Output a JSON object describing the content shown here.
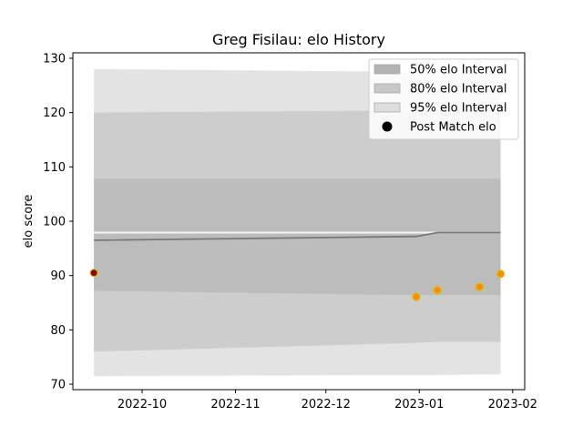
{
  "chart_data": {
    "type": "line",
    "title": "Greg Fisilau: elo History",
    "xlabel": "",
    "ylabel": "elo score",
    "ylim": [
      69,
      131
    ],
    "xlim": [
      "2022-09-08",
      "2023-02-05"
    ],
    "grid": false,
    "legend_position": "top-right",
    "x_ticks": [
      "2022-10-01",
      "2022-11-01",
      "2022-12-01",
      "2023-01-01",
      "2023-02-01"
    ],
    "x_tick_labels": [
      "2022-10",
      "2022-11",
      "2022-12",
      "2023-01",
      "2023-02"
    ],
    "y_ticks": [
      70,
      80,
      90,
      100,
      110,
      120,
      130
    ],
    "y_tick_labels": [
      "70",
      "80",
      "90",
      "100",
      "110",
      "120",
      "130"
    ],
    "band_dates": [
      "2022-09-15",
      "2022-12-31",
      "2023-01-07",
      "2023-01-21",
      "2023-01-28"
    ],
    "intervals": [
      {
        "name": "95% elo Interval",
        "color": "#e3e3e3",
        "upper": [
          128.0,
          127.5,
          127.4,
          127.3,
          127.3
        ],
        "lower": [
          71.5,
          71.7,
          71.7,
          71.8,
          71.8
        ]
      },
      {
        "name": "80% elo Interval",
        "color": "#cdcdcd",
        "upper": [
          120.0,
          120.4,
          120.5,
          120.5,
          120.5
        ],
        "lower": [
          76.0,
          77.6,
          77.8,
          77.8,
          77.8
        ]
      },
      {
        "name": "50% elo Interval",
        "color": "#bcbcbc",
        "upper": [
          107.8,
          107.8,
          107.8,
          107.8,
          107.8
        ],
        "lower": [
          87.2,
          86.4,
          86.4,
          86.4,
          86.4
        ]
      }
    ],
    "mean_line": {
      "dates": [
        "2022-09-15",
        "2022-12-31",
        "2023-01-07",
        "2023-01-21",
        "2023-01-28"
      ],
      "values": [
        96.5,
        97.2,
        97.9,
        97.9,
        97.9
      ],
      "color": "#777777"
    },
    "highlight_line": {
      "dates": [
        "2022-09-15",
        "2023-01-28"
      ],
      "values": [
        97.9,
        97.9
      ],
      "color": "#f4f4f4"
    },
    "post_match": {
      "name": "Post Match elo",
      "dates": [
        "2022-09-15",
        "2022-12-31",
        "2023-01-07",
        "2023-01-21",
        "2023-01-28"
      ],
      "values": [
        90.5,
        86.1,
        87.3,
        87.9,
        90.3
      ],
      "first_color": "#8b0000",
      "color": "#ff8c00",
      "edge_color": "#d8c000"
    },
    "legend": [
      {
        "label": "50% elo Interval",
        "kind": "patch",
        "color": "#b3b3b3"
      },
      {
        "label": "80% elo Interval",
        "kind": "patch",
        "color": "#c8c8c8"
      },
      {
        "label": "95% elo Interval",
        "kind": "patch",
        "color": "#dedede"
      },
      {
        "label": "Post Match elo",
        "kind": "marker",
        "color": "#000000"
      }
    ]
  }
}
